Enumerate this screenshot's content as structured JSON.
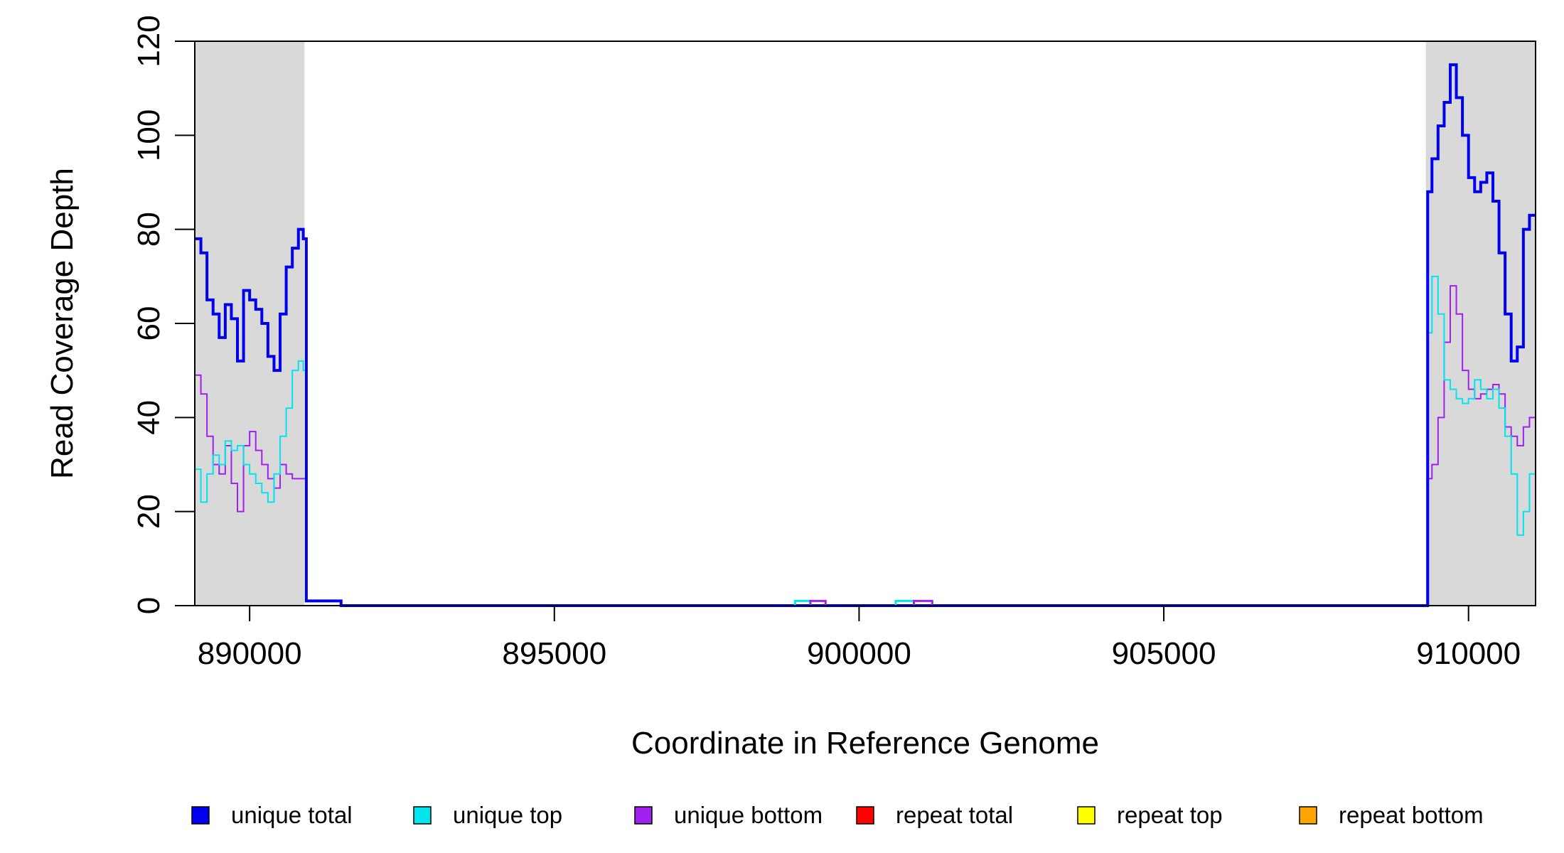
{
  "chart_data": {
    "type": "line",
    "xlabel": "Coordinate in Reference Genome",
    "ylabel": "Read Coverage Depth",
    "xlim": [
      889100,
      911100
    ],
    "ylim": [
      0,
      120
    ],
    "x_ticks": [
      890000,
      895000,
      900000,
      905000,
      910000
    ],
    "x_tick_labels": [
      "890000",
      "895000",
      "900000",
      "905000",
      "910000"
    ],
    "y_ticks": [
      0,
      20,
      40,
      60,
      80,
      100,
      120
    ],
    "y_tick_labels": [
      "0",
      "20",
      "40",
      "60",
      "80",
      "100",
      "120"
    ],
    "grid": false,
    "legend_position": "bottom",
    "shaded_regions": [
      {
        "x_start": 889100,
        "x_end": 890900,
        "color": "#d9d9d9"
      },
      {
        "x_start": 909300,
        "x_end": 911100,
        "color": "#d9d9d9"
      }
    ],
    "series": [
      {
        "name": "unique total",
        "color": "#0000ee",
        "width": 4,
        "x": [
          889100,
          889200,
          889300,
          889400,
          889500,
          889600,
          889700,
          889800,
          889900,
          890000,
          890100,
          890200,
          890300,
          890400,
          890500,
          890600,
          890700,
          890800,
          890880,
          890930,
          891200,
          891500,
          909300,
          909330,
          909400,
          909500,
          909600,
          909700,
          909800,
          909900,
          910000,
          910100,
          910200,
          910300,
          910400,
          910500,
          910600,
          910700,
          910800,
          910900,
          911000,
          911100
        ],
        "values": [
          78,
          75,
          65,
          62,
          57,
          64,
          61,
          52,
          67,
          65,
          63,
          60,
          53,
          50,
          62,
          72,
          76,
          80,
          78,
          1,
          1,
          0,
          0,
          88,
          95,
          102,
          107,
          115,
          108,
          100,
          91,
          88,
          90,
          92,
          86,
          75,
          62,
          52,
          55,
          80,
          83,
          83
        ]
      },
      {
        "name": "unique top",
        "color": "#00e5ee",
        "width": 2,
        "x": [
          889100,
          889200,
          889300,
          889400,
          889500,
          889600,
          889700,
          889800,
          889900,
          890000,
          890100,
          890200,
          890300,
          890400,
          890500,
          890600,
          890700,
          890800,
          890880,
          890930,
          891200,
          891500,
          909300,
          909330,
          909400,
          909500,
          909600,
          909700,
          909800,
          909900,
          910000,
          910100,
          910200,
          910300,
          910400,
          910500,
          910600,
          910700,
          910800,
          910900,
          911000,
          911100
        ],
        "values": [
          29,
          22,
          28,
          32,
          30,
          35,
          33,
          34,
          30,
          28,
          26,
          24,
          22,
          28,
          36,
          42,
          50,
          52,
          50,
          1,
          1,
          0,
          0,
          58,
          70,
          62,
          48,
          46,
          44,
          43,
          44,
          48,
          46,
          44,
          46,
          42,
          36,
          28,
          15,
          20,
          28,
          33
        ]
      },
      {
        "name": "unique bottom",
        "color": "#a020f0",
        "width": 2,
        "x": [
          889100,
          889200,
          889300,
          889400,
          889500,
          889600,
          889700,
          889800,
          889900,
          890000,
          890100,
          890200,
          890300,
          890400,
          890500,
          890600,
          890700,
          890800,
          890880,
          890930,
          891200,
          891500,
          909300,
          909330,
          909400,
          909500,
          909600,
          909700,
          909800,
          909900,
          910000,
          910100,
          910200,
          910300,
          910400,
          910500,
          910600,
          910700,
          910800,
          910900,
          911000,
          911100
        ],
        "values": [
          49,
          45,
          36,
          30,
          28,
          34,
          26,
          20,
          34,
          37,
          33,
          30,
          27,
          25,
          30,
          28,
          27,
          27,
          27,
          1,
          1,
          0,
          0,
          27,
          30,
          40,
          56,
          68,
          62,
          50,
          46,
          44,
          45,
          46,
          47,
          45,
          38,
          36,
          34,
          38,
          40,
          40
        ]
      },
      {
        "name": "repeat total",
        "color": "#ff0000",
        "width": 2,
        "x": [
          889100,
          911100
        ],
        "values": [
          0,
          0
        ]
      },
      {
        "name": "repeat top",
        "color": "#ffff00",
        "width": 2,
        "x": [
          889100,
          911100
        ],
        "values": [
          0,
          0
        ]
      },
      {
        "name": "repeat bottom",
        "color": "#ffa500",
        "width": 2,
        "x": [
          889100,
          911100
        ],
        "values": [
          0,
          0
        ]
      }
    ],
    "small_blips": [
      {
        "x_start": 898950,
        "x_end": 899450,
        "value": 1,
        "colors": [
          "#00e5ee",
          "#a020f0"
        ]
      },
      {
        "x_start": 900600,
        "x_end": 901200,
        "value": 1,
        "colors": [
          "#00e5ee",
          "#a020f0"
        ]
      }
    ]
  }
}
